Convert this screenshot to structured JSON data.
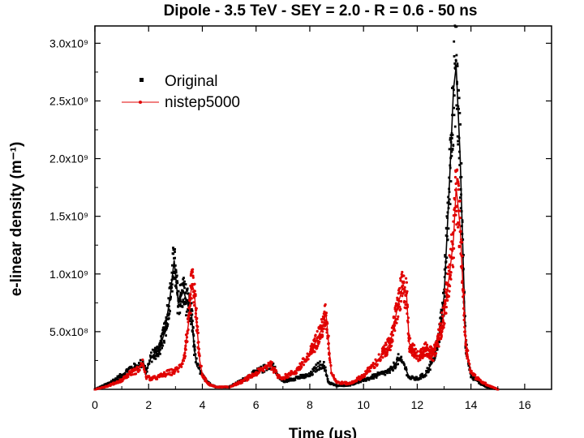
{
  "chart_data": {
    "type": "line",
    "title": "Dipole - 3.5 TeV - SEY = 2.0 - R = 0.6 - 50 ns",
    "xlabel": "Time (μs)",
    "ylabel": "e-linear density (m⁻¹)",
    "xlim": [
      0,
      17
    ],
    "ylim": [
      0,
      3150000000.0
    ],
    "x_ticks": [
      {
        "value": 0,
        "label": "0"
      },
      {
        "value": 2,
        "label": "2"
      },
      {
        "value": 4,
        "label": "4"
      },
      {
        "value": 6,
        "label": "6"
      },
      {
        "value": 8,
        "label": "8"
      },
      {
        "value": 10,
        "label": "10"
      },
      {
        "value": 12,
        "label": "12"
      },
      {
        "value": 14,
        "label": "14"
      },
      {
        "value": 16,
        "label": "16"
      }
    ],
    "y_ticks": [
      {
        "value": 500000000.0,
        "label": "5.0x10⁸"
      },
      {
        "value": 1000000000.0,
        "label": "1.0x10⁹"
      },
      {
        "value": 1500000000.0,
        "label": "1.5x10⁹"
      },
      {
        "value": 2000000000.0,
        "label": "2.0x10⁹"
      },
      {
        "value": 2500000000.0,
        "label": "2.5x10⁹"
      },
      {
        "value": 3000000000.0,
        "label": "3.0x10⁹"
      }
    ],
    "legend_position": "top-left",
    "series": [
      {
        "name": "Original",
        "color": "#000000",
        "marker": "square",
        "x": [
          0,
          0.5,
          1.0,
          1.3,
          1.6,
          1.8,
          1.9,
          2.1,
          2.4,
          2.6,
          2.8,
          2.95,
          3.1,
          3.3,
          3.5,
          3.6,
          3.7,
          3.8,
          4.0,
          4.2,
          4.5,
          5.0,
          5.5,
          6.0,
          6.3,
          6.6,
          6.8,
          7.0,
          7.5,
          8.0,
          8.3,
          8.5,
          8.6,
          8.7,
          9.0,
          9.5,
          10.0,
          10.5,
          11.0,
          11.3,
          11.5,
          11.7,
          12.0,
          12.3,
          12.6,
          12.8,
          13.0,
          13.2,
          13.35,
          13.45,
          13.6,
          13.8,
          14.0,
          14.3,
          14.6,
          15.0
        ],
        "y": [
          0,
          50000000.0,
          120000000.0,
          180000000.0,
          200000000.0,
          240000000.0,
          150000000.0,
          280000000.0,
          350000000.0,
          500000000.0,
          800000000.0,
          1120000000.0,
          750000000.0,
          850000000.0,
          700000000.0,
          650000000.0,
          350000000.0,
          200000000.0,
          140000000.0,
          60000000.0,
          20000000.0,
          20000000.0,
          80000000.0,
          150000000.0,
          180000000.0,
          220000000.0,
          120000000.0,
          70000000.0,
          100000000.0,
          120000000.0,
          200000000.0,
          220000000.0,
          150000000.0,
          60000000.0,
          30000000.0,
          40000000.0,
          80000000.0,
          120000000.0,
          160000000.0,
          260000000.0,
          220000000.0,
          100000000.0,
          90000000.0,
          130000000.0,
          250000000.0,
          450000000.0,
          800000000.0,
          1800000000.0,
          2600000000.0,
          2800000000.0,
          2000000000.0,
          400000000.0,
          120000000.0,
          60000000.0,
          20000000.0,
          0
        ]
      },
      {
        "name": "nistep5000",
        "color": "#e00000",
        "marker": "circle",
        "x": [
          0,
          0.5,
          1.0,
          1.3,
          1.6,
          1.8,
          1.9,
          2.1,
          2.4,
          2.7,
          3.0,
          3.2,
          3.35,
          3.5,
          3.6,
          3.7,
          3.8,
          3.9,
          4.0,
          4.2,
          4.5,
          5.0,
          5.5,
          6.0,
          6.3,
          6.5,
          6.6,
          6.8,
          7.0,
          7.5,
          8.0,
          8.3,
          8.5,
          8.6,
          8.7,
          8.8,
          9.0,
          9.5,
          10.0,
          10.5,
          11.0,
          11.3,
          11.45,
          11.6,
          11.7,
          12.0,
          12.3,
          12.6,
          12.8,
          13.0,
          13.2,
          13.35,
          13.45,
          13.6,
          13.8,
          14.0,
          14.3,
          14.6,
          15.0
        ],
        "y": [
          0,
          30000000.0,
          80000000.0,
          140000000.0,
          170000000.0,
          230000000.0,
          110000000.0,
          90000000.0,
          110000000.0,
          140000000.0,
          160000000.0,
          200000000.0,
          320000000.0,
          600000000.0,
          920000000.0,
          850000000.0,
          550000000.0,
          250000000.0,
          120000000.0,
          50000000.0,
          20000000.0,
          20000000.0,
          70000000.0,
          140000000.0,
          180000000.0,
          230000000.0,
          200000000.0,
          120000000.0,
          100000000.0,
          160000000.0,
          300000000.0,
          450000000.0,
          550000000.0,
          670000000.0,
          400000000.0,
          150000000.0,
          60000000.0,
          50000000.0,
          120000000.0,
          240000000.0,
          400000000.0,
          750000000.0,
          880000000.0,
          830000000.0,
          400000000.0,
          280000000.0,
          350000000.0,
          300000000.0,
          450000000.0,
          650000000.0,
          1000000000.0,
          1300000000.0,
          1750000000.0,
          1400000000.0,
          400000000.0,
          150000000.0,
          80000000.0,
          40000000.0,
          0
        ]
      }
    ]
  }
}
